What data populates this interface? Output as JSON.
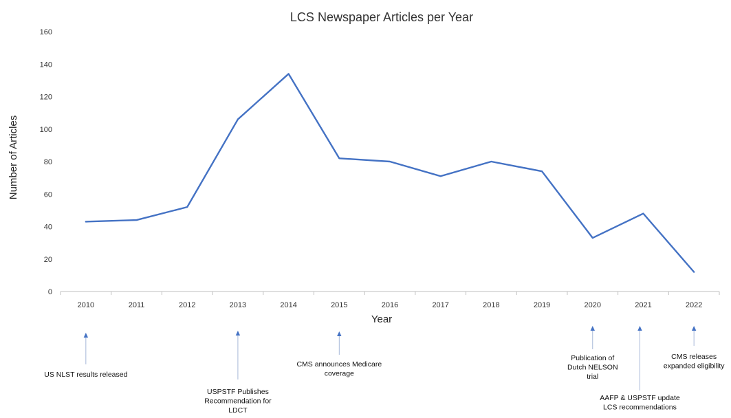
{
  "chart_data": {
    "type": "line",
    "title": "LCS Newspaper Articles per Year",
    "xlabel": "Year",
    "ylabel": "Number of Articles",
    "ylim": [
      0,
      160
    ],
    "yticks": [
      "0",
      "20",
      "40",
      "60",
      "80",
      "100",
      "120",
      "140",
      "160"
    ],
    "grid": false,
    "legend": "none",
    "categories": [
      "2010",
      "2011",
      "2012",
      "2013",
      "2014",
      "2015",
      "2016",
      "2017",
      "2018",
      "2019",
      "2020",
      "2021",
      "2022"
    ],
    "series": [
      {
        "color": "#4472c4",
        "values": [
          43,
          44,
          52,
          106,
          134,
          82,
          80,
          71,
          80,
          74,
          33,
          48,
          12
        ]
      }
    ],
    "annotations": [
      {
        "year": "2010",
        "lines": [
          "US NLST results released"
        ]
      },
      {
        "year": "2013",
        "lines": [
          "USPSTF Publishes",
          "Recommendation for",
          "LDCT"
        ]
      },
      {
        "year": "2015",
        "lines": [
          "CMS announces Medicare",
          "coverage"
        ]
      },
      {
        "year": "2020",
        "lines": [
          "Publication of",
          "Dutch NELSON",
          "trial"
        ]
      },
      {
        "year": "2021",
        "lines": [
          "AAFP & USPSTF update",
          "LCS  recommendations"
        ]
      },
      {
        "year": "2022",
        "lines": [
          "CMS releases",
          "expanded eligibility"
        ]
      }
    ]
  }
}
